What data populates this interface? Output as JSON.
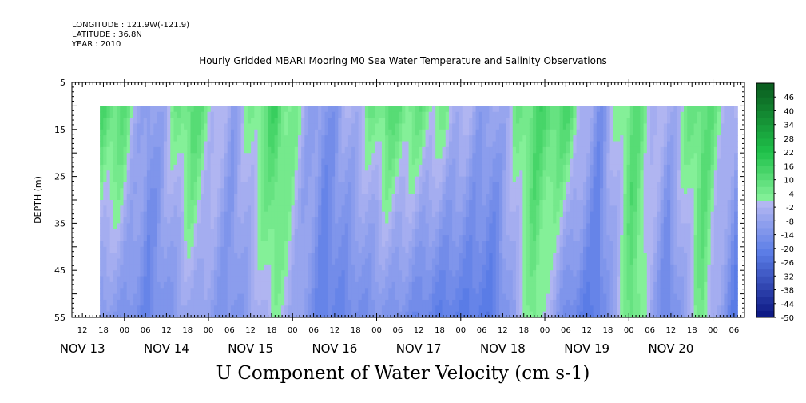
{
  "header": {
    "longitude": "LONGITUDE : 121.9W(-121.9)",
    "latitude": "LATITUDE : 36.8N",
    "year": "YEAR : 2010"
  },
  "chart_data": {
    "type": "heatmap",
    "title": "Hourly Gridded MBARI Mooring M0 Sea Water Temperature and Salinity Observations",
    "footer_label": "U Component of Water Velocity (cm s-1)",
    "ylabel": "DEPTH (m)",
    "ylim": [
      5,
      55
    ],
    "y_inverted": true,
    "y_ticks": [
      5,
      15,
      25,
      35,
      45,
      55
    ],
    "data_depth_range": [
      10,
      55
    ],
    "x_start": "2010-11-12T09:00",
    "x_end": "2010-11-20T09:00",
    "data_start": "2010-11-12T17:00",
    "data_end": "2010-11-20T07:00",
    "x_hour_ticks": [
      "12",
      "18",
      "00",
      "06",
      "12",
      "18",
      "00",
      "06",
      "12",
      "18",
      "00",
      "06",
      "12",
      "18",
      "00",
      "06",
      "12",
      "18",
      "00",
      "06",
      "12",
      "18",
      "00",
      "06",
      "12",
      "18",
      "00",
      "06",
      "12",
      "18",
      "00",
      "06"
    ],
    "x_day_labels": [
      "NOV 13",
      "NOV 14",
      "NOV 15",
      "NOV 16",
      "NOV 17",
      "NOV 18",
      "NOV 19",
      "NOV 20"
    ],
    "colorbar_labels": [
      "46",
      "40",
      "34",
      "28",
      "22",
      "16",
      "10",
      "4",
      "-2",
      "-8",
      "-14",
      "-20",
      "-26",
      "-32",
      "-38",
      "-44",
      "-50"
    ],
    "colorbar_range": [
      -50,
      52
    ],
    "colorbar_step": 3,
    "colors": {
      "positive_dark": "#0a5a1e",
      "positive_mid": "#1fc24a",
      "positive_light": "#8ef5a0",
      "negative_light": "#b4b8f2",
      "negative_mid": "#5a7ce6",
      "negative_dark": "#0a1480"
    },
    "velocity_profile": {
      "hours_from_start": [
        0,
        14,
        22,
        34,
        46,
        58,
        72,
        90,
        104,
        120,
        132,
        142,
        150,
        160,
        170,
        180,
        190,
        200
      ],
      "surface_u_cm_s": [
        14,
        10,
        -12,
        12,
        -8,
        14,
        -14,
        10,
        4,
        -10,
        12,
        12,
        -14,
        10,
        -6,
        12,
        -6,
        2
      ],
      "bottom_u_cm_s": [
        -10,
        -12,
        -18,
        -6,
        -14,
        2,
        -20,
        -12,
        -20,
        -22,
        6,
        -18,
        -22,
        10,
        -20,
        6,
        -24,
        -4
      ]
    }
  }
}
